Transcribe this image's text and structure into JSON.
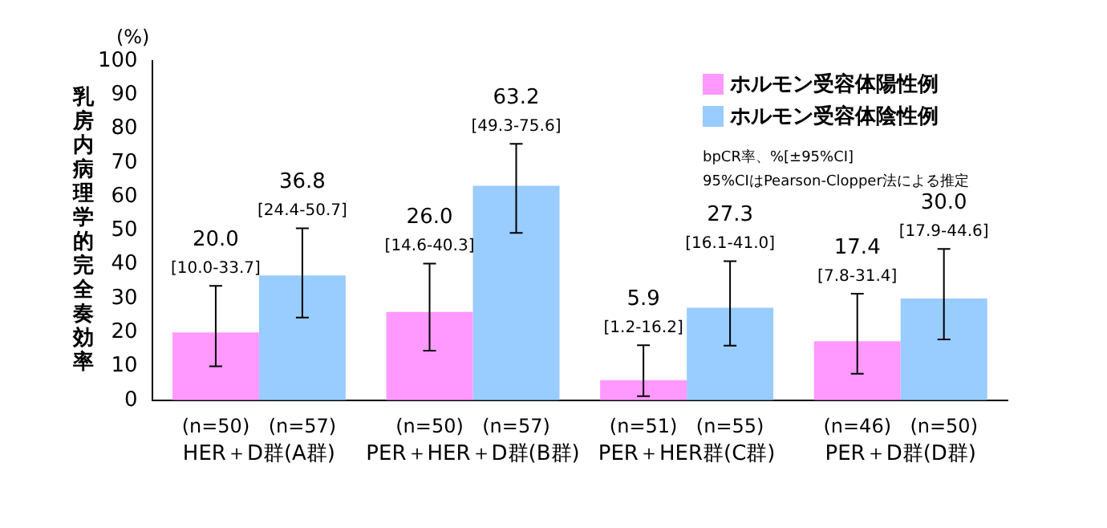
{
  "chart_data": {
    "type": "bar",
    "ylabel": "乳房内病理学的完全奏効率",
    "categories": [
      "HER＋D群(A群)",
      "PER＋HER＋D群(B群)",
      "PER＋HER群(C群)",
      "PER＋D群(D群)"
    ],
    "series": [
      {
        "name": "ホルモン受容体陽性例",
        "color": "#ff99ff",
        "values": [
          20.0,
          26.0,
          5.9,
          17.4
        ],
        "errors": [
          [
            10.0,
            33.7
          ],
          [
            14.6,
            40.3
          ],
          [
            1.2,
            16.2
          ],
          [
            7.8,
            31.4
          ]
        ],
        "value_labels": [
          "20.0\n[10.0-33.7]",
          "26.0\n[14.6-40.3]",
          "5.9\n[1.2-16.2]",
          "17.4\n[7.8-31.4]"
        ]
      },
      {
        "name": "ホルモン受容体陰性例",
        "color": "#99ccff",
        "values": [
          36.8,
          63.2,
          27.3,
          30.0
        ],
        "errors": [
          [
            24.4,
            50.7
          ],
          [
            49.3,
            75.6
          ],
          [
            16.1,
            41.0
          ],
          [
            17.9,
            44.6
          ]
        ],
        "value_labels": [
          "36.8\n[24.4-50.7]",
          "63.2\n[49.3-75.6]",
          "27.3\n[16.1-41.0]",
          "30.0\n[17.9-44.6]"
        ]
      }
    ],
    "ylim": [
      0,
      100
    ],
    "yticks": [
      0,
      10,
      20,
      30,
      40,
      50,
      60,
      70,
      80,
      90,
      100
    ],
    "grid": false,
    "legend": "top right",
    "annotations": [
      "(%)",
      "bpCR率、%[±95%CI]",
      "95%CIはPearson-Clopper法による推定",
      "(n=50)",
      "(n=57)",
      "(n=50)",
      "(n=57)",
      "(n=51)",
      "(n=55)",
      "(n=46)",
      "(n=50)"
    ]
  }
}
